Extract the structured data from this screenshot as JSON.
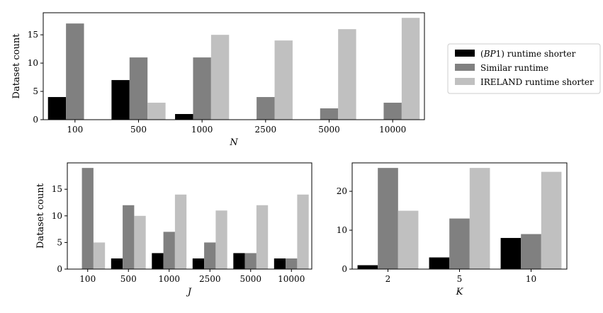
{
  "chart_data": [
    {
      "type": "bar",
      "categories": [
        "100",
        "500",
        "1000",
        "2500",
        "5000",
        "10000"
      ],
      "series": [
        {
          "name": "(BP1) runtime shorter",
          "values": [
            4,
            7,
            1,
            0,
            0,
            0
          ]
        },
        {
          "name": "Similar runtime",
          "values": [
            17,
            11,
            11,
            4,
            2,
            3
          ]
        },
        {
          "name": "IRELAND runtime shorter",
          "values": [
            0,
            3,
            15,
            14,
            16,
            18
          ]
        }
      ],
      "xlabel": "N",
      "ylabel": "Dataset count",
      "ylim": [
        0,
        18.9
      ],
      "yticks": [
        0,
        5,
        10,
        15
      ],
      "legend": "right"
    },
    {
      "type": "bar",
      "categories": [
        "100",
        "500",
        "1000",
        "2500",
        "5000",
        "10000"
      ],
      "series": [
        {
          "name": "(BP1) runtime shorter",
          "values": [
            0,
            2,
            3,
            2,
            3,
            2
          ]
        },
        {
          "name": "Similar runtime",
          "values": [
            19,
            12,
            7,
            5,
            3,
            2
          ]
        },
        {
          "name": "IRELAND runtime shorter",
          "values": [
            5,
            10,
            14,
            11,
            12,
            14
          ]
        }
      ],
      "xlabel": "J",
      "ylabel": "Dataset count",
      "ylim": [
        0,
        19.95
      ],
      "yticks": [
        0,
        5,
        10,
        15
      ]
    },
    {
      "type": "bar",
      "categories": [
        "2",
        "5",
        "10"
      ],
      "series": [
        {
          "name": "(BP1) runtime shorter",
          "values": [
            1,
            3,
            8
          ]
        },
        {
          "name": "Similar runtime",
          "values": [
            26,
            13,
            9
          ]
        },
        {
          "name": "IRELAND runtime shorter",
          "values": [
            15,
            26,
            25
          ]
        }
      ],
      "xlabel": "K",
      "ylabel": "",
      "ylim": [
        0,
        27.3
      ],
      "yticks": [
        0,
        10,
        20
      ]
    }
  ],
  "colors": {
    "black": "#000000",
    "dark_gray": "#808080",
    "light_gray": "#c0c0c0"
  },
  "legend": {
    "items": [
      {
        "prefix": "(",
        "italic": "BP",
        "suffix": "1) runtime shorter"
      },
      {
        "prefix": "Similar runtime",
        "italic": "",
        "suffix": ""
      },
      {
        "prefix": "IRELAND runtime shorter",
        "italic": "",
        "suffix": ""
      }
    ]
  }
}
